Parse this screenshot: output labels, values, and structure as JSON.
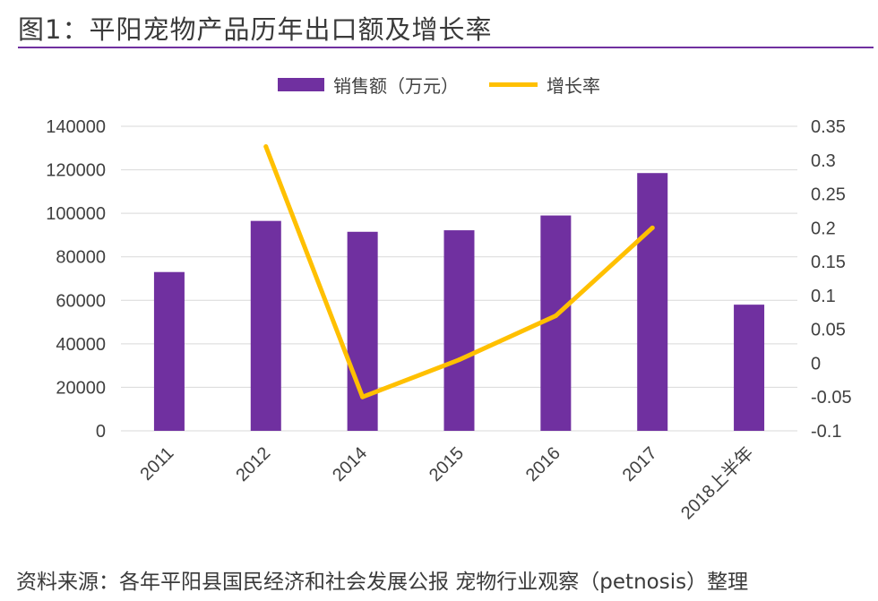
{
  "title": "图1：平阳宠物产品历年出口额及增长率",
  "legend": {
    "bar_label": "销售额（万元）",
    "line_label": "增长率"
  },
  "source": "资料来源：各年平阳县国民经济和社会发展公报 宠物行业观察（petnosis）整理",
  "colors": {
    "bar": "#7030a0",
    "line": "#ffc000",
    "accent": "#7030a0",
    "grid": "#d9d9d9"
  },
  "chart_data": {
    "type": "bar",
    "title": "平阳宠物产品历年出口额及增长率",
    "categories": [
      "2011",
      "2012",
      "2014",
      "2015",
      "2016",
      "2017",
      "2018上半年"
    ],
    "series": [
      {
        "name": "销售额（万元）",
        "type": "bar",
        "axis": "left",
        "values": [
          73000,
          96500,
          91500,
          92200,
          99000,
          118500,
          58000
        ]
      },
      {
        "name": "增长率",
        "type": "line",
        "axis": "right",
        "values": [
          null,
          0.32,
          -0.05,
          0.005,
          0.07,
          0.2,
          null
        ]
      }
    ],
    "y_left": {
      "min": 0,
      "max": 140000,
      "step": 20000,
      "ticks": [
        "0",
        "20000",
        "40000",
        "60000",
        "80000",
        "100000",
        "120000",
        "140000"
      ]
    },
    "y_right": {
      "min": -0.1,
      "max": 0.35,
      "step": 0.05,
      "ticks": [
        "-0.1",
        "-0.05",
        "0",
        "0.05",
        "0.1",
        "0.15",
        "0.2",
        "0.25",
        "0.3",
        "0.35"
      ]
    },
    "grid": true,
    "legend_position": "top-center"
  }
}
